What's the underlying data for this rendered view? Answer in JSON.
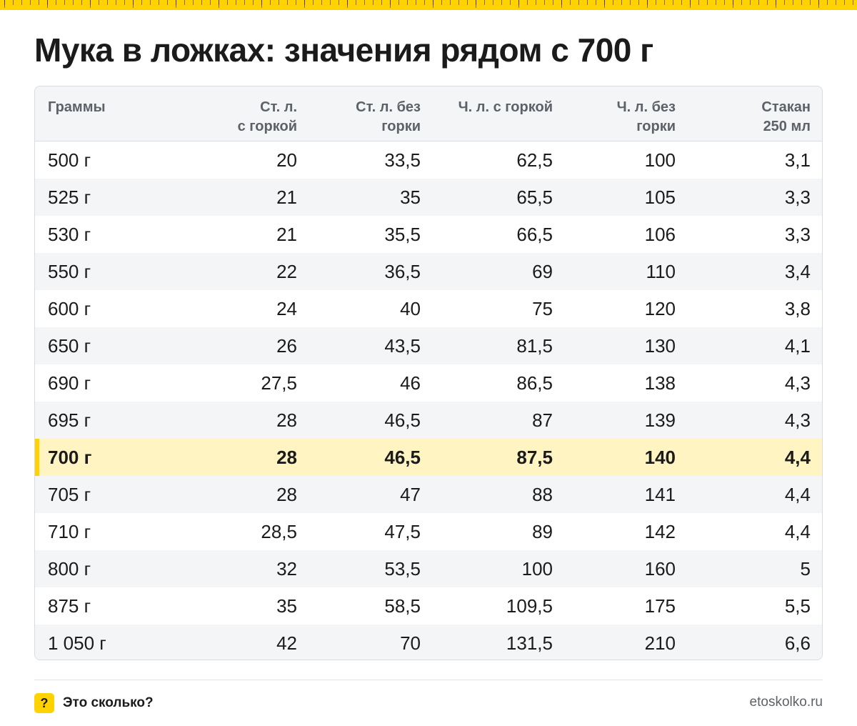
{
  "title": "Мука в ложках: значения рядом с 700 г",
  "brand_color": "#ffd200",
  "highlight_color": "#fff4c2",
  "table": {
    "headers": [
      [
        "Граммы"
      ],
      [
        "Ст. л.",
        "с горкой"
      ],
      [
        "Ст. л. без",
        "горки"
      ],
      [
        "Ч. л. с горкой"
      ],
      [
        "Ч. л. без",
        "горки"
      ],
      [
        "Стакан",
        "250 мл"
      ]
    ],
    "highlighted_row": 8,
    "rows": [
      [
        "500 г",
        "20",
        "33,5",
        "62,5",
        "100",
        "3,1"
      ],
      [
        "525 г",
        "21",
        "35",
        "65,5",
        "105",
        "3,3"
      ],
      [
        "530 г",
        "21",
        "35,5",
        "66,5",
        "106",
        "3,3"
      ],
      [
        "550 г",
        "22",
        "36,5",
        "69",
        "110",
        "3,4"
      ],
      [
        "600 г",
        "24",
        "40",
        "75",
        "120",
        "3,8"
      ],
      [
        "650 г",
        "26",
        "43,5",
        "81,5",
        "130",
        "4,1"
      ],
      [
        "690 г",
        "27,5",
        "46",
        "86,5",
        "138",
        "4,3"
      ],
      [
        "695 г",
        "28",
        "46,5",
        "87",
        "139",
        "4,3"
      ],
      [
        "700 г",
        "28",
        "46,5",
        "87,5",
        "140",
        "4,4"
      ],
      [
        "705 г",
        "28",
        "47",
        "88",
        "141",
        "4,4"
      ],
      [
        "710 г",
        "28,5",
        "47,5",
        "89",
        "142",
        "4,4"
      ],
      [
        "800 г",
        "32",
        "53,5",
        "100",
        "160",
        "5"
      ],
      [
        "875 г",
        "35",
        "58,5",
        "109,5",
        "175",
        "5,5"
      ],
      [
        "1 050 г",
        "42",
        "70",
        "131,5",
        "210",
        "6,6"
      ]
    ]
  },
  "footer": {
    "logo_mark": "?",
    "brand": "Это сколько?",
    "site": "etoskolko.ru"
  }
}
